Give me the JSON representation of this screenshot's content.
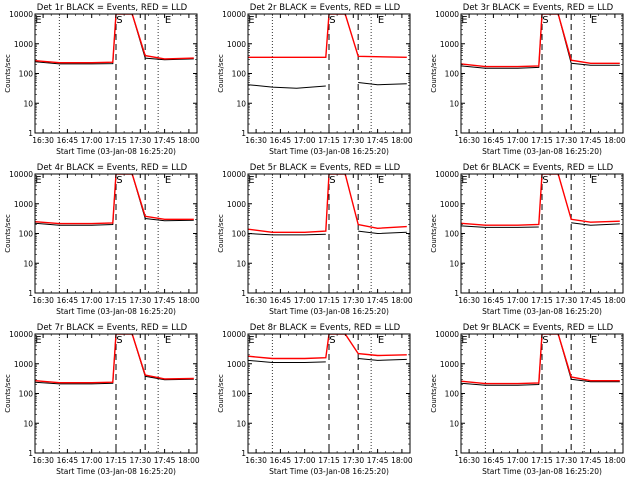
{
  "colors": {
    "events": "#000000",
    "lld": "#ff0000",
    "background": "#ffffff"
  },
  "shared": {
    "xlabel": "Start Time (03-Jan-08 16:25:20)",
    "ylabel": "Counts/sec",
    "x_ticks": [
      "16:30",
      "16:45",
      "17:00",
      "17:15",
      "17:30",
      "17:45",
      "18:00"
    ],
    "y_ticks": [
      "1",
      "10",
      "100",
      "1000",
      "10000"
    ],
    "markers": [
      "E",
      "S",
      "E"
    ]
  },
  "chart_data": [
    {
      "type": "line",
      "title": "Det 1r BLACK = Events, RED = LLD",
      "y_scale": "log",
      "ylim": [
        1,
        10000
      ],
      "xlim": [
        "16:25",
        "18:05"
      ],
      "x_ticks": [
        "16:30",
        "16:45",
        "17:00",
        "17:15",
        "17:30",
        "17:45",
        "18:00"
      ],
      "markers": [
        {
          "label": "E",
          "x": "16:27"
        },
        {
          "label": "S",
          "x": "17:17"
        },
        {
          "label": "E",
          "x": "17:47"
        }
      ],
      "dashed_lines": [
        "17:15",
        "17:33"
      ],
      "dotted_lines": [
        "16:40",
        "17:41"
      ],
      "series": [
        {
          "name": "Events",
          "color": "#000000",
          "x": [
            "16:25",
            "16:40",
            "17:00",
            "17:13",
            "17:15",
            "17:16",
            "17:25",
            "17:33",
            "17:45",
            "18:03"
          ],
          "y": [
            250,
            210,
            210,
            215,
            10000,
            10000,
            10000,
            330,
            290,
            310
          ]
        },
        {
          "name": "LLD",
          "color": "#ff0000",
          "x": [
            "16:25",
            "16:40",
            "17:00",
            "17:13",
            "17:15",
            "17:16",
            "17:25",
            "17:33",
            "17:45",
            "18:03"
          ],
          "y": [
            270,
            230,
            230,
            240,
            10000,
            10000,
            10000,
            400,
            310,
            330
          ]
        }
      ]
    },
    {
      "type": "line",
      "title": "Det 2r BLACK = Events, RED = LLD",
      "y_scale": "log",
      "ylim": [
        1,
        10000
      ],
      "xlim": [
        "16:25",
        "18:05"
      ],
      "x_ticks": [
        "16:30",
        "16:45",
        "17:00",
        "17:15",
        "17:30",
        "17:45",
        "18:00"
      ],
      "markers": [
        {
          "label": "E",
          "x": "16:27"
        },
        {
          "label": "S",
          "x": "17:17"
        },
        {
          "label": "E",
          "x": "17:47"
        }
      ],
      "dashed_lines": [
        "17:15",
        "17:33"
      ],
      "dotted_lines": [
        "16:40",
        "17:41"
      ],
      "series": [
        {
          "name": "Events",
          "color": "#000000",
          "x": [
            "16:25",
            "16:40",
            "16:55",
            "17:13"
          ],
          "y": [
            42,
            35,
            32,
            38
          ],
          "x2": [
            "17:33",
            "17:45",
            "18:03"
          ],
          "y2": [
            50,
            42,
            45
          ]
        },
        {
          "name": "LLD",
          "color": "#ff0000",
          "x": [
            "16:25",
            "17:13",
            "17:15",
            "17:16",
            "17:25",
            "17:33",
            "18:03"
          ],
          "y": [
            350,
            350,
            10000,
            10000,
            10000,
            380,
            350
          ]
        }
      ]
    },
    {
      "type": "line",
      "title": "Det 3r BLACK = Events, RED = LLD",
      "y_scale": "log",
      "ylim": [
        1,
        10000
      ],
      "xlim": [
        "16:25",
        "18:05"
      ],
      "x_ticks": [
        "16:30",
        "16:45",
        "17:00",
        "17:15",
        "17:30",
        "17:45",
        "18:00"
      ],
      "markers": [
        {
          "label": "E",
          "x": "16:27"
        },
        {
          "label": "S",
          "x": "17:17"
        },
        {
          "label": "E",
          "x": "17:47"
        }
      ],
      "dashed_lines": [
        "17:15",
        "17:33"
      ],
      "dotted_lines": [
        "16:40",
        "17:41"
      ],
      "series": [
        {
          "name": "Events",
          "color": "#000000",
          "x": [
            "16:25",
            "16:40",
            "17:00",
            "17:13",
            "17:15",
            "17:16",
            "17:25",
            "17:33",
            "17:45",
            "18:03"
          ],
          "y": [
            180,
            150,
            150,
            160,
            10000,
            10000,
            10000,
            220,
            190,
            190
          ]
        },
        {
          "name": "LLD",
          "color": "#ff0000",
          "x": [
            "16:25",
            "16:40",
            "17:00",
            "17:13",
            "17:15",
            "17:16",
            "17:25",
            "17:33",
            "17:45",
            "18:03"
          ],
          "y": [
            210,
            170,
            170,
            180,
            10000,
            10000,
            10000,
            280,
            220,
            220
          ]
        }
      ]
    },
    {
      "type": "line",
      "title": "Det 4r BLACK = Events, RED = LLD",
      "y_scale": "log",
      "ylim": [
        1,
        10000
      ],
      "xlim": [
        "16:25",
        "18:05"
      ],
      "x_ticks": [
        "16:30",
        "16:45",
        "17:00",
        "17:15",
        "17:30",
        "17:45",
        "18:00"
      ],
      "markers": [
        {
          "label": "E",
          "x": "16:27"
        },
        {
          "label": "S",
          "x": "17:17"
        },
        {
          "label": "E",
          "x": "17:47"
        }
      ],
      "dashed_lines": [
        "17:15",
        "17:33"
      ],
      "dotted_lines": [
        "16:40",
        "17:41"
      ],
      "series": [
        {
          "name": "Events",
          "color": "#000000",
          "x": [
            "16:25",
            "16:40",
            "17:00",
            "17:13",
            "17:15",
            "17:16",
            "17:25",
            "17:33",
            "17:45",
            "18:03"
          ],
          "y": [
            220,
            190,
            190,
            200,
            10000,
            10000,
            10000,
            320,
            270,
            280
          ]
        },
        {
          "name": "LLD",
          "color": "#ff0000",
          "x": [
            "16:25",
            "16:40",
            "17:00",
            "17:13",
            "17:15",
            "17:16",
            "17:25",
            "17:33",
            "17:45",
            "18:03"
          ],
          "y": [
            250,
            215,
            215,
            225,
            10000,
            10000,
            10000,
            380,
            300,
            300
          ]
        }
      ]
    },
    {
      "type": "line",
      "title": "Det 5r BLACK = Events, RED = LLD",
      "y_scale": "log",
      "ylim": [
        1,
        10000
      ],
      "xlim": [
        "16:25",
        "18:05"
      ],
      "x_ticks": [
        "16:30",
        "16:45",
        "17:00",
        "17:15",
        "17:30",
        "17:45",
        "18:00"
      ],
      "markers": [
        {
          "label": "E",
          "x": "16:27"
        },
        {
          "label": "S",
          "x": "17:17"
        },
        {
          "label": "E",
          "x": "17:47"
        }
      ],
      "dashed_lines": [
        "17:15",
        "17:33"
      ],
      "dotted_lines": [
        "16:40",
        "17:41"
      ],
      "series": [
        {
          "name": "Events",
          "color": "#000000",
          "x": [
            "16:25",
            "16:40",
            "17:00",
            "17:13"
          ],
          "y": [
            100,
            90,
            90,
            95
          ],
          "x2": [
            "17:33",
            "17:45",
            "18:03"
          ],
          "y2": [
            120,
            100,
            110
          ]
        },
        {
          "name": "LLD",
          "color": "#ff0000",
          "x": [
            "16:25",
            "16:40",
            "17:00",
            "17:13",
            "17:15",
            "17:16",
            "17:25",
            "17:33",
            "17:45",
            "18:03"
          ],
          "y": [
            140,
            110,
            110,
            120,
            10000,
            10000,
            10000,
            200,
            150,
            170
          ]
        }
      ]
    },
    {
      "type": "line",
      "title": "Det 6r BLACK = Events, RED = LLD",
      "y_scale": "log",
      "ylim": [
        1,
        10000
      ],
      "xlim": [
        "16:25",
        "18:05"
      ],
      "x_ticks": [
        "16:30",
        "16:45",
        "17:00",
        "17:15",
        "17:30",
        "17:45",
        "18:00"
      ],
      "markers": [
        {
          "label": "E",
          "x": "16:27"
        },
        {
          "label": "S",
          "x": "17:17"
        },
        {
          "label": "E",
          "x": "17:47"
        }
      ],
      "dashed_lines": [
        "17:15",
        "17:33"
      ],
      "dotted_lines": [
        "16:40",
        "17:41"
      ],
      "series": [
        {
          "name": "Events",
          "color": "#000000",
          "x": [
            "16:25",
            "16:40",
            "17:00",
            "17:13"
          ],
          "y": [
            180,
            160,
            160,
            165
          ],
          "x2": [
            "17:33",
            "17:45",
            "18:03"
          ],
          "y2": [
            230,
            190,
            210
          ]
        },
        {
          "name": "LLD",
          "color": "#ff0000",
          "x": [
            "16:25",
            "16:40",
            "17:00",
            "17:13",
            "17:15",
            "17:16",
            "17:25",
            "17:33",
            "17:45",
            "18:03"
          ],
          "y": [
            220,
            190,
            190,
            200,
            10000,
            10000,
            10000,
            300,
            240,
            260
          ]
        }
      ]
    },
    {
      "type": "line",
      "title": "Det 7r BLACK = Events, RED = LLD",
      "y_scale": "log",
      "ylim": [
        1,
        10000
      ],
      "xlim": [
        "16:25",
        "18:05"
      ],
      "x_ticks": [
        "16:30",
        "16:45",
        "17:00",
        "17:15",
        "17:30",
        "17:45",
        "18:00"
      ],
      "markers": [
        {
          "label": "E",
          "x": "16:27"
        },
        {
          "label": "S",
          "x": "17:17"
        },
        {
          "label": "E",
          "x": "17:47"
        }
      ],
      "dashed_lines": [
        "17:15",
        "17:33"
      ],
      "dotted_lines": [
        "16:40",
        "17:41"
      ],
      "series": [
        {
          "name": "Events",
          "color": "#000000",
          "x": [
            "16:25",
            "16:40",
            "17:00",
            "17:13",
            "17:15",
            "17:16",
            "17:25",
            "17:33",
            "17:45",
            "18:03"
          ],
          "y": [
            240,
            210,
            210,
            220,
            10000,
            10000,
            10000,
            380,
            290,
            300
          ]
        },
        {
          "name": "LLD",
          "color": "#ff0000",
          "x": [
            "16:25",
            "16:40",
            "17:00",
            "17:13",
            "17:15",
            "17:16",
            "17:25",
            "17:33",
            "17:45",
            "18:03"
          ],
          "y": [
            270,
            230,
            230,
            240,
            10000,
            10000,
            10000,
            420,
            310,
            320
          ]
        }
      ]
    },
    {
      "type": "line",
      "title": "Det 8r BLACK = Events, RED = LLD",
      "y_scale": "log",
      "ylim": [
        1,
        10000
      ],
      "xlim": [
        "16:25",
        "18:05"
      ],
      "x_ticks": [
        "16:30",
        "16:45",
        "17:00",
        "17:15",
        "17:30",
        "17:45",
        "18:00"
      ],
      "markers": [
        {
          "label": "E",
          "x": "16:27"
        },
        {
          "label": "S",
          "x": "17:17"
        },
        {
          "label": "E",
          "x": "17:47"
        }
      ],
      "dashed_lines": [
        "17:15",
        "17:33"
      ],
      "dotted_lines": [
        "16:40",
        "17:41"
      ],
      "series": [
        {
          "name": "Events",
          "color": "#000000",
          "x": [
            "16:25",
            "16:40",
            "17:00",
            "17:13"
          ],
          "y": [
            1300,
            1100,
            1100,
            1150
          ],
          "x2": [
            "17:33",
            "17:45",
            "18:03"
          ],
          "y2": [
            1500,
            1300,
            1400
          ]
        },
        {
          "name": "LLD",
          "color": "#ff0000",
          "x": [
            "16:25",
            "16:40",
            "17:00",
            "17:13",
            "17:15",
            "17:16",
            "17:25",
            "17:33",
            "17:45",
            "18:03"
          ],
          "y": [
            1800,
            1500,
            1500,
            1600,
            10000,
            10000,
            10000,
            2200,
            1900,
            2000
          ]
        }
      ]
    },
    {
      "type": "line",
      "title": "Det 9r BLACK = Events, RED = LLD",
      "y_scale": "log",
      "ylim": [
        1,
        10000
      ],
      "xlim": [
        "16:25",
        "18:05"
      ],
      "x_ticks": [
        "16:30",
        "16:45",
        "17:00",
        "17:15",
        "17:30",
        "17:45",
        "18:00"
      ],
      "markers": [
        {
          "label": "E",
          "x": "16:27"
        },
        {
          "label": "S",
          "x": "17:17"
        },
        {
          "label": "E",
          "x": "17:47"
        }
      ],
      "dashed_lines": [
        "17:15",
        "17:33"
      ],
      "dotted_lines": [
        "16:40",
        "17:41"
      ],
      "series": [
        {
          "name": "Events",
          "color": "#000000",
          "x": [
            "16:25",
            "16:40",
            "17:00",
            "17:13",
            "17:15",
            "17:16",
            "17:25",
            "17:33",
            "17:45",
            "18:03"
          ],
          "y": [
            220,
            190,
            190,
            200,
            10000,
            10000,
            10000,
            300,
            250,
            250
          ]
        },
        {
          "name": "LLD",
          "color": "#ff0000",
          "x": [
            "16:25",
            "16:40",
            "17:00",
            "17:13",
            "17:15",
            "17:16",
            "17:25",
            "17:33",
            "17:45",
            "18:03"
          ],
          "y": [
            260,
            215,
            215,
            225,
            10000,
            10000,
            10000,
            360,
            270,
            270
          ]
        }
      ]
    }
  ]
}
